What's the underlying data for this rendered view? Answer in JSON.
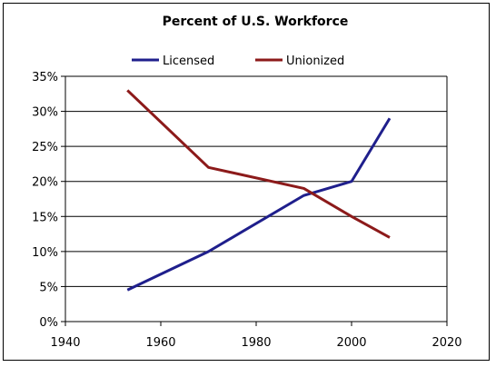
{
  "chart_data": {
    "type": "line",
    "title": "Percent of U.S. Workforce",
    "xlabel": "",
    "ylabel": "",
    "xlim": [
      1940,
      2020
    ],
    "ylim": [
      0,
      35
    ],
    "x_ticks": [
      1940,
      1960,
      1980,
      2000,
      2020
    ],
    "x_tick_labels": [
      "1940",
      "1960",
      "1980",
      "2000",
      "2020"
    ],
    "y_ticks": [
      0,
      5,
      10,
      15,
      20,
      25,
      30,
      35
    ],
    "y_tick_labels": [
      "0%",
      "5%",
      "10%",
      "15%",
      "20%",
      "25%",
      "30%",
      "35%"
    ],
    "grid": "horizontal",
    "legend": "top",
    "series": [
      {
        "name": "Licensed",
        "color": "#1f1f8c",
        "points": [
          [
            1953,
            4.5
          ],
          [
            1970,
            10
          ],
          [
            1990,
            18
          ],
          [
            2000,
            20
          ],
          [
            2008,
            29
          ]
        ]
      },
      {
        "name": "Unionized",
        "color": "#8c1a1a",
        "points": [
          [
            1953,
            33
          ],
          [
            1970,
            22
          ],
          [
            1990,
            19
          ],
          [
            2000,
            15
          ],
          [
            2008,
            12
          ]
        ]
      }
    ]
  }
}
